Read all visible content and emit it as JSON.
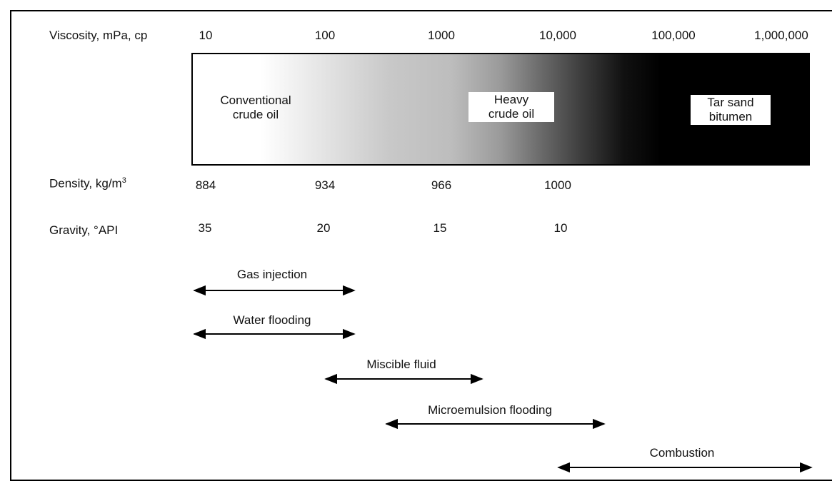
{
  "axes": {
    "viscosity": {
      "label": "Viscosity, mPa, cp",
      "ticks": [
        "10",
        "100",
        "1000",
        "10,000",
        "100,000",
        "1,000,000"
      ]
    },
    "density": {
      "label_main": "Density, kg/m",
      "label_sup": "3",
      "ticks": [
        "884",
        "934",
        "966",
        "1000"
      ]
    },
    "gravity": {
      "label": "Gravity, °API",
      "ticks": [
        "35",
        "20",
        "15",
        "10"
      ]
    }
  },
  "regions": {
    "conventional": [
      "Conventional",
      "crude oil"
    ],
    "heavy": [
      "Heavy",
      "crude oil"
    ],
    "tar_sand": [
      "Tar sand",
      "bitumen"
    ]
  },
  "methods": [
    {
      "label": "Gas injection"
    },
    {
      "label": "Water flooding"
    },
    {
      "label": "Miscible fluid"
    },
    {
      "label": "Microemulsion flooding"
    },
    {
      "label": "Combustion"
    }
  ]
}
